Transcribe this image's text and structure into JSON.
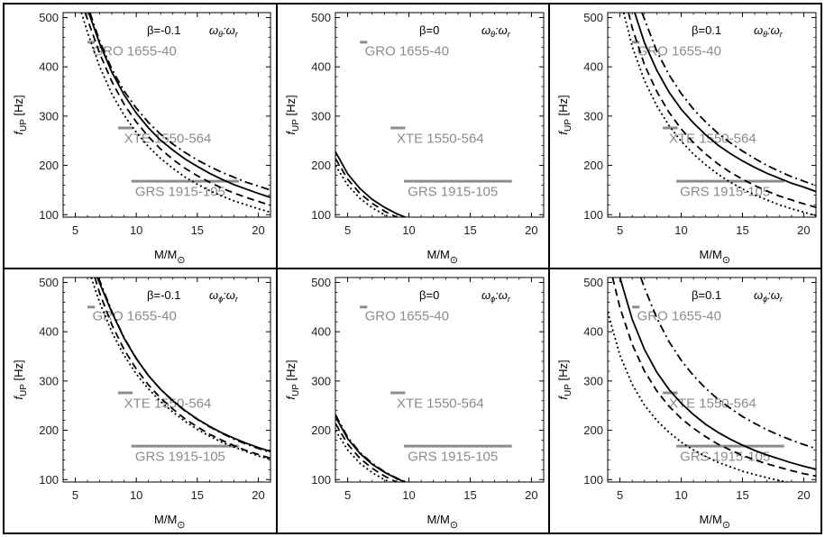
{
  "figure": {
    "border_color": "#000000",
    "curve_color": "#000000",
    "source_color": "#8c8c8c",
    "xaxis_label": "M/M",
    "xaxis_sub": "⊙",
    "yaxis_label": "f",
    "yaxis_sub": "UP",
    "yaxis_unit": "[Hz]"
  },
  "chart_data": [
    {
      "type": "line",
      "panel": "beta-minus0.1-theta",
      "beta_label": "β=-0.1",
      "ratio_label": "ωθ:ωr",
      "xlim": [
        4,
        21
      ],
      "ylim": [
        95,
        510
      ],
      "xticks": [
        5,
        10,
        15,
        20
      ],
      "yticks": [
        100,
        200,
        300,
        400,
        500
      ],
      "grid": false,
      "series": [
        {
          "style": "dashdot",
          "x": [
            6.2,
            7,
            8,
            9,
            10,
            11,
            12,
            13,
            14,
            15,
            16,
            17,
            18,
            19,
            20,
            21
          ],
          "y": [
            510,
            452,
            395,
            351,
            316,
            287,
            263,
            243,
            226,
            211,
            198,
            186,
            176,
            166,
            158,
            150
          ]
        },
        {
          "style": "solid",
          "x": [
            6.1,
            7,
            8,
            9,
            10,
            11,
            12,
            13,
            14,
            15,
            16,
            17,
            18,
            19,
            20,
            21
          ],
          "y": [
            510,
            447,
            389,
            343,
            306,
            276,
            251,
            231,
            213,
            198,
            184,
            172,
            161,
            152,
            143,
            135
          ]
        },
        {
          "style": "dashed",
          "x": [
            5.8,
            7,
            8,
            9,
            10,
            11,
            12,
            13,
            14,
            15,
            16,
            17,
            18,
            19,
            20,
            21
          ],
          "y": [
            510,
            427,
            370,
            324,
            288,
            258,
            233,
            212,
            194,
            179,
            166,
            154,
            144,
            135,
            127,
            119
          ]
        },
        {
          "style": "dotted",
          "x": [
            5.5,
            6,
            7,
            8,
            9,
            10,
            11,
            12,
            13,
            14,
            15,
            16,
            17,
            18,
            19,
            20,
            21
          ],
          "y": [
            510,
            470,
            400,
            345,
            302,
            267,
            238,
            214,
            194,
            176,
            162,
            149,
            138,
            128,
            120,
            112,
            105
          ]
        }
      ]
    },
    {
      "type": "line",
      "panel": "beta-0-theta",
      "beta_label": "β=0",
      "ratio_label": "ωθ:ωr",
      "xlim": [
        4,
        21
      ],
      "ylim": [
        95,
        510
      ],
      "xticks": [
        5,
        10,
        15,
        20
      ],
      "yticks": [
        100,
        200,
        300,
        400,
        500
      ],
      "grid": false,
      "series": [
        {
          "style": "solid",
          "x": [
            4,
            5,
            6,
            7,
            8,
            9,
            10,
            11
          ],
          "y": [
            228,
            183,
            153,
            131,
            115,
            102,
            92,
            84
          ]
        },
        {
          "style": "dashed",
          "x": [
            4,
            5,
            6,
            7,
            8,
            9,
            10
          ],
          "y": [
            214,
            172,
            143,
            123,
            107,
            95,
            86
          ]
        },
        {
          "style": "dotted",
          "x": [
            4,
            5,
            6,
            7,
            8,
            9,
            10
          ],
          "y": [
            200,
            160,
            133,
            114,
            100,
            89,
            80
          ]
        }
      ]
    },
    {
      "type": "line",
      "panel": "beta-0.1-theta",
      "beta_label": "β=0.1",
      "ratio_label": "ωθ:ωr",
      "xlim": [
        4,
        21
      ],
      "ylim": [
        95,
        510
      ],
      "xticks": [
        5,
        10,
        15,
        20
      ],
      "yticks": [
        100,
        200,
        300,
        400,
        500
      ],
      "grid": false,
      "series": [
        {
          "style": "dashdot",
          "x": [
            6.8,
            8,
            9,
            10,
            11,
            12,
            13,
            14,
            15,
            16,
            17,
            18,
            19,
            20,
            21
          ],
          "y": [
            510,
            432,
            384,
            346,
            314,
            288,
            265,
            246,
            229,
            214,
            200,
            188,
            177,
            168,
            159
          ]
        },
        {
          "style": "solid",
          "x": [
            6.2,
            7,
            8,
            9,
            10,
            11,
            12,
            13,
            14,
            15,
            16,
            17,
            18,
            19,
            20,
            21
          ],
          "y": [
            510,
            449,
            393,
            349,
            314,
            286,
            262,
            241,
            224,
            209,
            196,
            184,
            174,
            164,
            156,
            147
          ]
        },
        {
          "style": "dashed",
          "x": [
            5.7,
            6,
            7,
            8,
            9,
            10,
            11,
            12,
            13,
            14,
            15,
            16,
            17,
            18,
            19,
            20,
            21
          ],
          "y": [
            510,
            479,
            404,
            350,
            308,
            274,
            246,
            223,
            203,
            186,
            172,
            159,
            148,
            138,
            130,
            122,
            115
          ]
        },
        {
          "style": "dotted",
          "x": [
            5.3,
            6,
            7,
            8,
            9,
            10,
            11,
            12,
            13,
            14,
            15,
            16,
            17,
            18,
            19,
            20,
            21
          ],
          "y": [
            510,
            441,
            372,
            321,
            281,
            249,
            223,
            201,
            182,
            166,
            152,
            140,
            130,
            120,
            112,
            105,
            98
          ]
        }
      ]
    },
    {
      "type": "line",
      "panel": "beta-minus0.1-phi",
      "beta_label": "β=-0.1",
      "ratio_label": "ωϕ:ωr",
      "xlim": [
        4,
        21
      ],
      "ylim": [
        95,
        510
      ],
      "xticks": [
        5,
        10,
        15,
        20
      ],
      "yticks": [
        100,
        200,
        300,
        400,
        500
      ],
      "grid": false,
      "series": [
        {
          "style": "dashdot",
          "x": [
            6.9,
            8,
            9,
            10,
            11,
            12,
            13,
            14,
            15,
            16,
            17,
            18,
            19,
            20,
            21
          ],
          "y": [
            510,
            441,
            388,
            346,
            311,
            283,
            259,
            239,
            222,
            207,
            194,
            182,
            172,
            163,
            155
          ]
        },
        {
          "style": "solid",
          "x": [
            6.8,
            8,
            9,
            10,
            11,
            12,
            13,
            14,
            15,
            16,
            17,
            18,
            19,
            20,
            21
          ],
          "y": [
            510,
            439,
            387,
            345,
            311,
            283,
            260,
            240,
            223,
            208,
            195,
            184,
            174,
            165,
            157
          ]
        },
        {
          "style": "dashed",
          "x": [
            6.6,
            7,
            8,
            9,
            10,
            11,
            12,
            13,
            14,
            15,
            16,
            17,
            18,
            19,
            20,
            21
          ],
          "y": [
            510,
            478,
            414,
            364,
            324,
            292,
            265,
            243,
            223,
            207,
            192,
            180,
            169,
            159,
            151,
            143
          ]
        },
        {
          "style": "dotted",
          "x": [
            6.3,
            7,
            8,
            9,
            10,
            11,
            12,
            13,
            14,
            15,
            16,
            17,
            18,
            19,
            20,
            21
          ],
          "y": [
            510,
            459,
            399,
            352,
            314,
            284,
            258,
            237,
            218,
            202,
            188,
            176,
            166,
            157,
            148,
            141
          ]
        }
      ]
    },
    {
      "type": "line",
      "panel": "beta-0-phi",
      "beta_label": "β=0",
      "ratio_label": "ωϕ:ωr",
      "xlim": [
        4,
        21
      ],
      "ylim": [
        95,
        510
      ],
      "xticks": [
        5,
        10,
        15,
        20
      ],
      "yticks": [
        100,
        200,
        300,
        400,
        500
      ],
      "grid": false,
      "series": [
        {
          "style": "dashdot",
          "x": [
            4,
            5,
            6,
            7,
            8,
            9,
            10,
            11
          ],
          "y": [
            232,
            186,
            155,
            133,
            116,
            103,
            93,
            85
          ]
        },
        {
          "style": "solid",
          "x": [
            4,
            5,
            6,
            7,
            8,
            9,
            10,
            11
          ],
          "y": [
            228,
            183,
            153,
            131,
            115,
            102,
            92,
            84
          ]
        },
        {
          "style": "dashed",
          "x": [
            4,
            5,
            6,
            7,
            8,
            9,
            10
          ],
          "y": [
            214,
            172,
            143,
            123,
            107,
            95,
            86
          ]
        },
        {
          "style": "dotted",
          "x": [
            4,
            5,
            6,
            7,
            8,
            9,
            10
          ],
          "y": [
            200,
            160,
            133,
            114,
            100,
            89,
            80
          ]
        }
      ]
    },
    {
      "type": "line",
      "panel": "beta-0.1-phi",
      "beta_label": "β=0.1",
      "ratio_label": "ωϕ:ωr",
      "xlim": [
        4,
        21
      ],
      "ylim": [
        95,
        510
      ],
      "xticks": [
        5,
        10,
        15,
        20
      ],
      "yticks": [
        100,
        200,
        300,
        400,
        500
      ],
      "grid": false,
      "series": [
        {
          "style": "dashdot",
          "x": [
            6.7,
            7,
            8,
            9,
            10,
            11,
            12,
            13,
            14,
            15,
            16,
            17,
            18,
            19,
            20,
            21
          ],
          "y": [
            510,
            489,
            428,
            380,
            342,
            311,
            285,
            263,
            245,
            228,
            214,
            201,
            190,
            180,
            171,
            163
          ]
        },
        {
          "style": "solid",
          "x": [
            5.0,
            6,
            7,
            8,
            9,
            10,
            11,
            12,
            13,
            14,
            15,
            16,
            17,
            18,
            19,
            20,
            21
          ],
          "y": [
            510,
            425,
            364,
            318,
            283,
            255,
            232,
            212,
            196,
            182,
            170,
            159,
            150,
            142,
            134,
            127,
            121
          ]
        },
        {
          "style": "dashed",
          "x": [
            4.4,
            5,
            6,
            7,
            8,
            9,
            10,
            11,
            12,
            13,
            14,
            15,
            16,
            17,
            18,
            19,
            20,
            21
          ],
          "y": [
            510,
            449,
            374,
            320,
            280,
            249,
            224,
            204,
            187,
            172,
            160,
            149,
            140,
            132,
            125,
            118,
            112,
            107
          ]
        },
        {
          "style": "dotted",
          "x": [
            4,
            5,
            6,
            7,
            8,
            9,
            10,
            11,
            12,
            13,
            14,
            15,
            16,
            17,
            18,
            19,
            20,
            21
          ],
          "y": [
            440,
            352,
            293,
            251,
            220,
            196,
            176,
            160,
            147,
            135,
            126,
            117,
            110,
            104,
            98,
            93,
            88,
            84
          ]
        }
      ]
    }
  ],
  "sources": [
    {
      "label": "GRO 1655-40",
      "freq": 450,
      "m_range": [
        6.0,
        6.6
      ],
      "label_m": 6.4,
      "label_f": 432
    },
    {
      "label": "XTE 1550-564",
      "freq": 276,
      "m_range": [
        8.5,
        9.7
      ],
      "label_m": 9.0,
      "label_f": 255
    },
    {
      "label": "GRS 1915-105",
      "freq": 168,
      "m_range": [
        9.6,
        18.4
      ],
      "label_m": 9.9,
      "label_f": 147
    }
  ]
}
